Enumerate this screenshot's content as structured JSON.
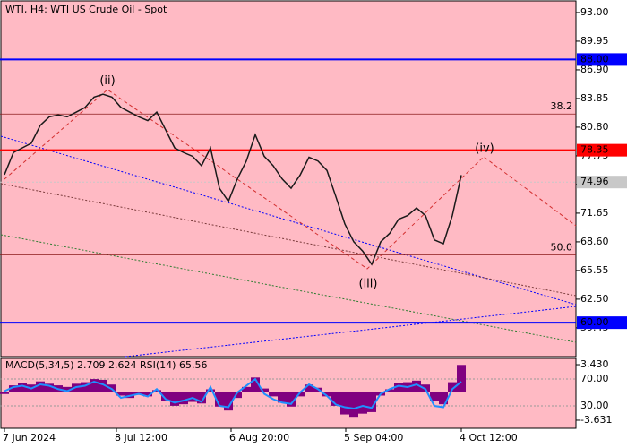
{
  "chart_data": {
    "type": "line",
    "title": "WTI, H4:  WTI US Crude Oil - Spot",
    "background": "#ffbac4",
    "line_color": "#1a1a1a",
    "series": [
      {
        "name": "WTI",
        "color": "#1a1a1a",
        "values": [
          75.75,
          78.1,
          78.6,
          79.1,
          81.0,
          81.9,
          82.1,
          81.9,
          82.4,
          82.9,
          84.0,
          84.3,
          84.0,
          82.9,
          82.4,
          81.9,
          81.5,
          82.4,
          80.5,
          78.6,
          78.1,
          77.7,
          76.7,
          78.6,
          74.3,
          72.9,
          75.3,
          77.2,
          80.0,
          77.7,
          76.7,
          75.3,
          74.3,
          75.7,
          77.6,
          77.2,
          76.2,
          73.4,
          70.5,
          68.6,
          67.6,
          66.2,
          68.6,
          69.5,
          71.0,
          71.4,
          72.2,
          71.4,
          68.8,
          68.4,
          71.4,
          75.7
        ]
      }
    ],
    "xlim": [
      -0.5,
      63.8
    ],
    "xticks": [
      {
        "value": 0,
        "label": "7 Jun 2024"
      },
      {
        "value": 12.5,
        "label": "8 Jul 12:00"
      },
      {
        "value": 25.3,
        "label": "6 Aug 20:00"
      },
      {
        "value": 38.1,
        "label": "5 Sep 04:00"
      },
      {
        "value": 51,
        "label": "4 Oct 12:00"
      }
    ],
    "ylim": [
      56.39,
      94.33
    ],
    "yticks": [
      {
        "value": 93,
        "label": "93.00"
      },
      {
        "value": 89.95,
        "label": "89.95"
      },
      {
        "value": 86.9,
        "label": "86.90"
      },
      {
        "value": 83.85,
        "label": "83.85"
      },
      {
        "value": 80.8,
        "label": "80.80"
      },
      {
        "value": 77.75,
        "label": "77.75"
      },
      {
        "value": 74.7,
        "label": "74.70"
      },
      {
        "value": 71.65,
        "label": "71.65"
      },
      {
        "value": 68.6,
        "label": "68.60"
      },
      {
        "value": 65.55,
        "label": "65.55"
      },
      {
        "value": 62.5,
        "label": "62.50"
      },
      {
        "value": 59.45,
        "label": "59.45"
      }
    ],
    "levels": [
      {
        "value": 88,
        "label": "88.00",
        "color": "#0000ff"
      },
      {
        "value": 78.35,
        "label": "78.35",
        "color": "#ff0000"
      },
      {
        "value": 60,
        "label": "60.00",
        "color": "#0000ff"
      },
      {
        "value": 74.96,
        "label": "74.96",
        "color": "#c8c8c8"
      }
    ],
    "fib_levels": [
      {
        "price": 82.2,
        "label": "38.2"
      },
      {
        "price": 67.2,
        "label": "50.0"
      }
    ],
    "annotations": [
      {
        "text": "(ii)",
        "x": 11.5,
        "y": 85.7
      },
      {
        "text": "(iii)",
        "x": 40.6,
        "y": 64.1
      },
      {
        "text": "(iv)",
        "x": 53.6,
        "y": 78.5
      }
    ],
    "indicator": {
      "title": "MACD(5,34,5) 2.709 2.624 RSI(14) 65.56",
      "macd_color": "#800080",
      "rsi_color": "#1e90ff",
      "macd_ylim": [
        -4.66,
        4.23
      ],
      "rsi_ylim": [
        -3.3,
        100.7
      ],
      "macd_ticks": [
        {
          "value": 3.43,
          "label": "3.430"
        },
        {
          "value": -3.631,
          "label": "-3.631"
        }
      ],
      "rsi_ticks": [
        {
          "value": 70,
          "label": "70.00"
        },
        {
          "value": 30,
          "label": "30.00"
        }
      ],
      "macd": [
        -0.3,
        0.8,
        1.1,
        0.9,
        1.3,
        1.0,
        0.8,
        0.6,
        1.0,
        1.2,
        1.6,
        1.5,
        0.9,
        -0.5,
        -0.8,
        -0.4,
        -0.6,
        0.2,
        -1.2,
        -1.8,
        -1.6,
        -1.3,
        -1.5,
        0.3,
        -1.9,
        -2.4,
        -0.8,
        0.6,
        1.8,
        0.4,
        -0.6,
        -1.4,
        -1.9,
        -0.6,
        0.9,
        0.5,
        -0.6,
        -1.8,
        -2.9,
        -3.2,
        -2.8,
        -2.6,
        -0.5,
        0.3,
        1.1,
        1.2,
        1.4,
        0.9,
        -1.2,
        -1.6,
        1.2,
        3.4
      ],
      "rsi": [
        52,
        58,
        60,
        56,
        62,
        60,
        55,
        52,
        58,
        60,
        66,
        62,
        55,
        42,
        45,
        48,
        44,
        55,
        40,
        35,
        38,
        42,
        36,
        58,
        30,
        28,
        50,
        60,
        70,
        48,
        40,
        35,
        33,
        50,
        62,
        55,
        45,
        32,
        28,
        26,
        30,
        27,
        48,
        55,
        60,
        58,
        62,
        55,
        30,
        28,
        55,
        66
      ]
    }
  }
}
